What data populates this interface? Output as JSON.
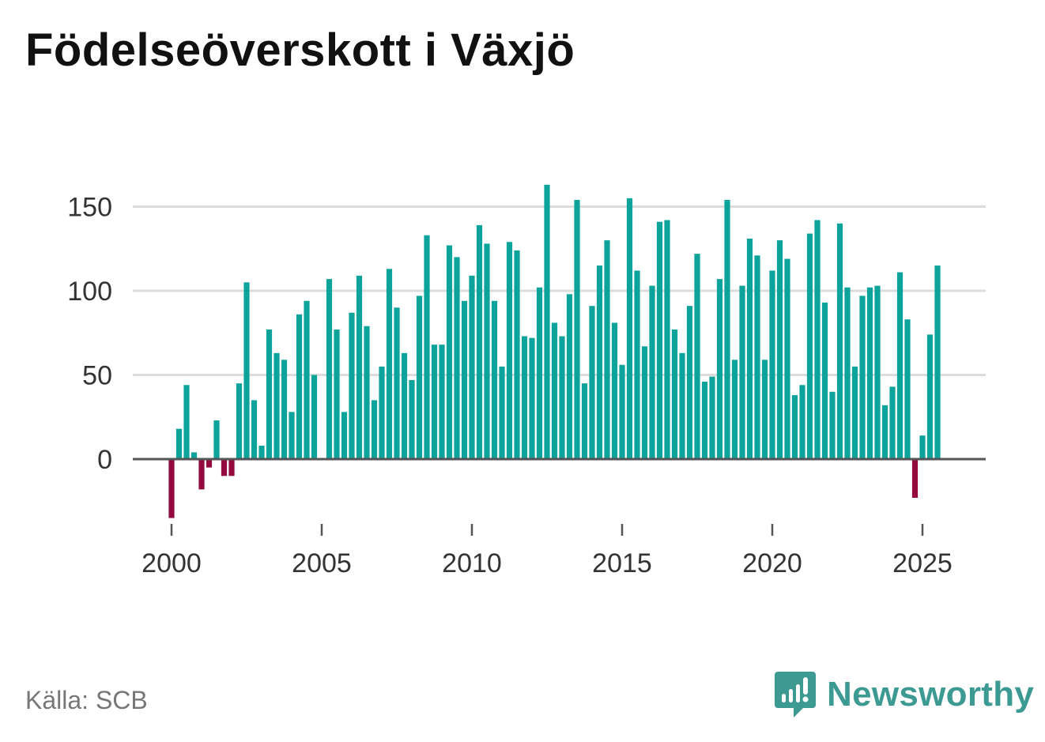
{
  "title": "Födelseöverskott i Växjö",
  "source": "Källa: SCB",
  "brand": {
    "name": "Newsworthy",
    "icon": "newsworthy-logo-icon",
    "color": "#3c9a93"
  },
  "colors": {
    "positive": "#0ba39a",
    "negative": "#940a3f",
    "grid": "#dcdcdc",
    "zero_line": "#555555",
    "tick_text": "#333333"
  },
  "chart_data": {
    "type": "bar",
    "title": "Födelseöverskott i Växjö",
    "xlabel": "",
    "ylabel": "",
    "frequency": "quarterly",
    "x_start": 2000.0,
    "x_step": 0.25,
    "xlim": [
      1999.5,
      2027.0
    ],
    "ylim": [
      -43,
      163
    ],
    "y_ticks": [
      0,
      50,
      100,
      150
    ],
    "x_ticks": [
      2000,
      2005,
      2010,
      2015,
      2020,
      2025
    ],
    "grid": true,
    "values": [
      -35,
      18,
      44,
      4,
      -18,
      -5,
      23,
      -10,
      -10,
      45,
      105,
      35,
      8,
      77,
      63,
      59,
      28,
      86,
      94,
      50,
      0,
      107,
      77,
      28,
      87,
      109,
      79,
      35,
      55,
      113,
      90,
      63,
      47,
      97,
      133,
      68,
      68,
      127,
      120,
      94,
      109,
      139,
      128,
      94,
      55,
      129,
      124,
      73,
      72,
      102,
      163,
      81,
      73,
      98,
      154,
      45,
      91,
      115,
      130,
      81,
      56,
      155,
      112,
      67,
      103,
      141,
      142,
      77,
      63,
      91,
      122,
      46,
      49,
      107,
      154,
      59,
      103,
      131,
      121,
      59,
      112,
      130,
      119,
      38,
      44,
      134,
      142,
      93,
      40,
      140,
      102,
      55,
      97,
      102,
      103,
      32,
      43,
      111,
      83,
      -23,
      14,
      74,
      115
    ]
  }
}
